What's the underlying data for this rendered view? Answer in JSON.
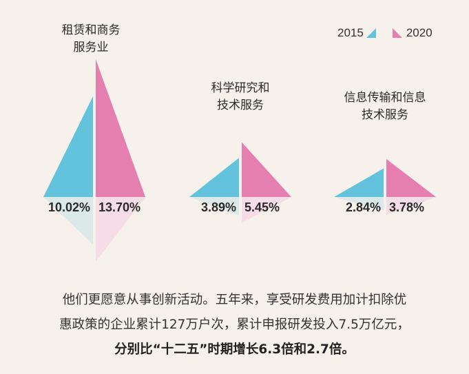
{
  "legend": {
    "label_2015": "2015",
    "label_2020": "2020",
    "color_2015": "#63c3dd",
    "color_2020": "#e57fb0"
  },
  "chart_data": {
    "type": "bar",
    "title": "",
    "categories": [
      {
        "line1": "租赁和商务",
        "line2": "服务业",
        "label_2015": "10.02%",
        "label_2020": "13.70%"
      },
      {
        "line1": "科学研究和",
        "line2": "技术服务",
        "label_2015": "3.89%",
        "label_2020": "5.45%"
      },
      {
        "line1": "信息传输和信息",
        "line2": "技术服务",
        "label_2015": "2.84%",
        "label_2020": "3.78%"
      }
    ],
    "series": [
      {
        "name": "2015",
        "values": [
          10.02,
          3.89,
          2.84
        ],
        "color": "#63c3dd"
      },
      {
        "name": "2020",
        "values": [
          13.7,
          5.45,
          3.78
        ],
        "color": "#e57fb0"
      }
    ],
    "unit": "%",
    "legend_position": "top-right"
  },
  "text": {
    "line1": "他们更愿意从事创新活动。五年来，享受研发费用加计扣除优",
    "line2": "惠政策的企业累计127万户次，累计申报研发投入7.5万亿元，",
    "line3": "分别比“十二五”时期增长6.3倍和2.7倍。"
  }
}
